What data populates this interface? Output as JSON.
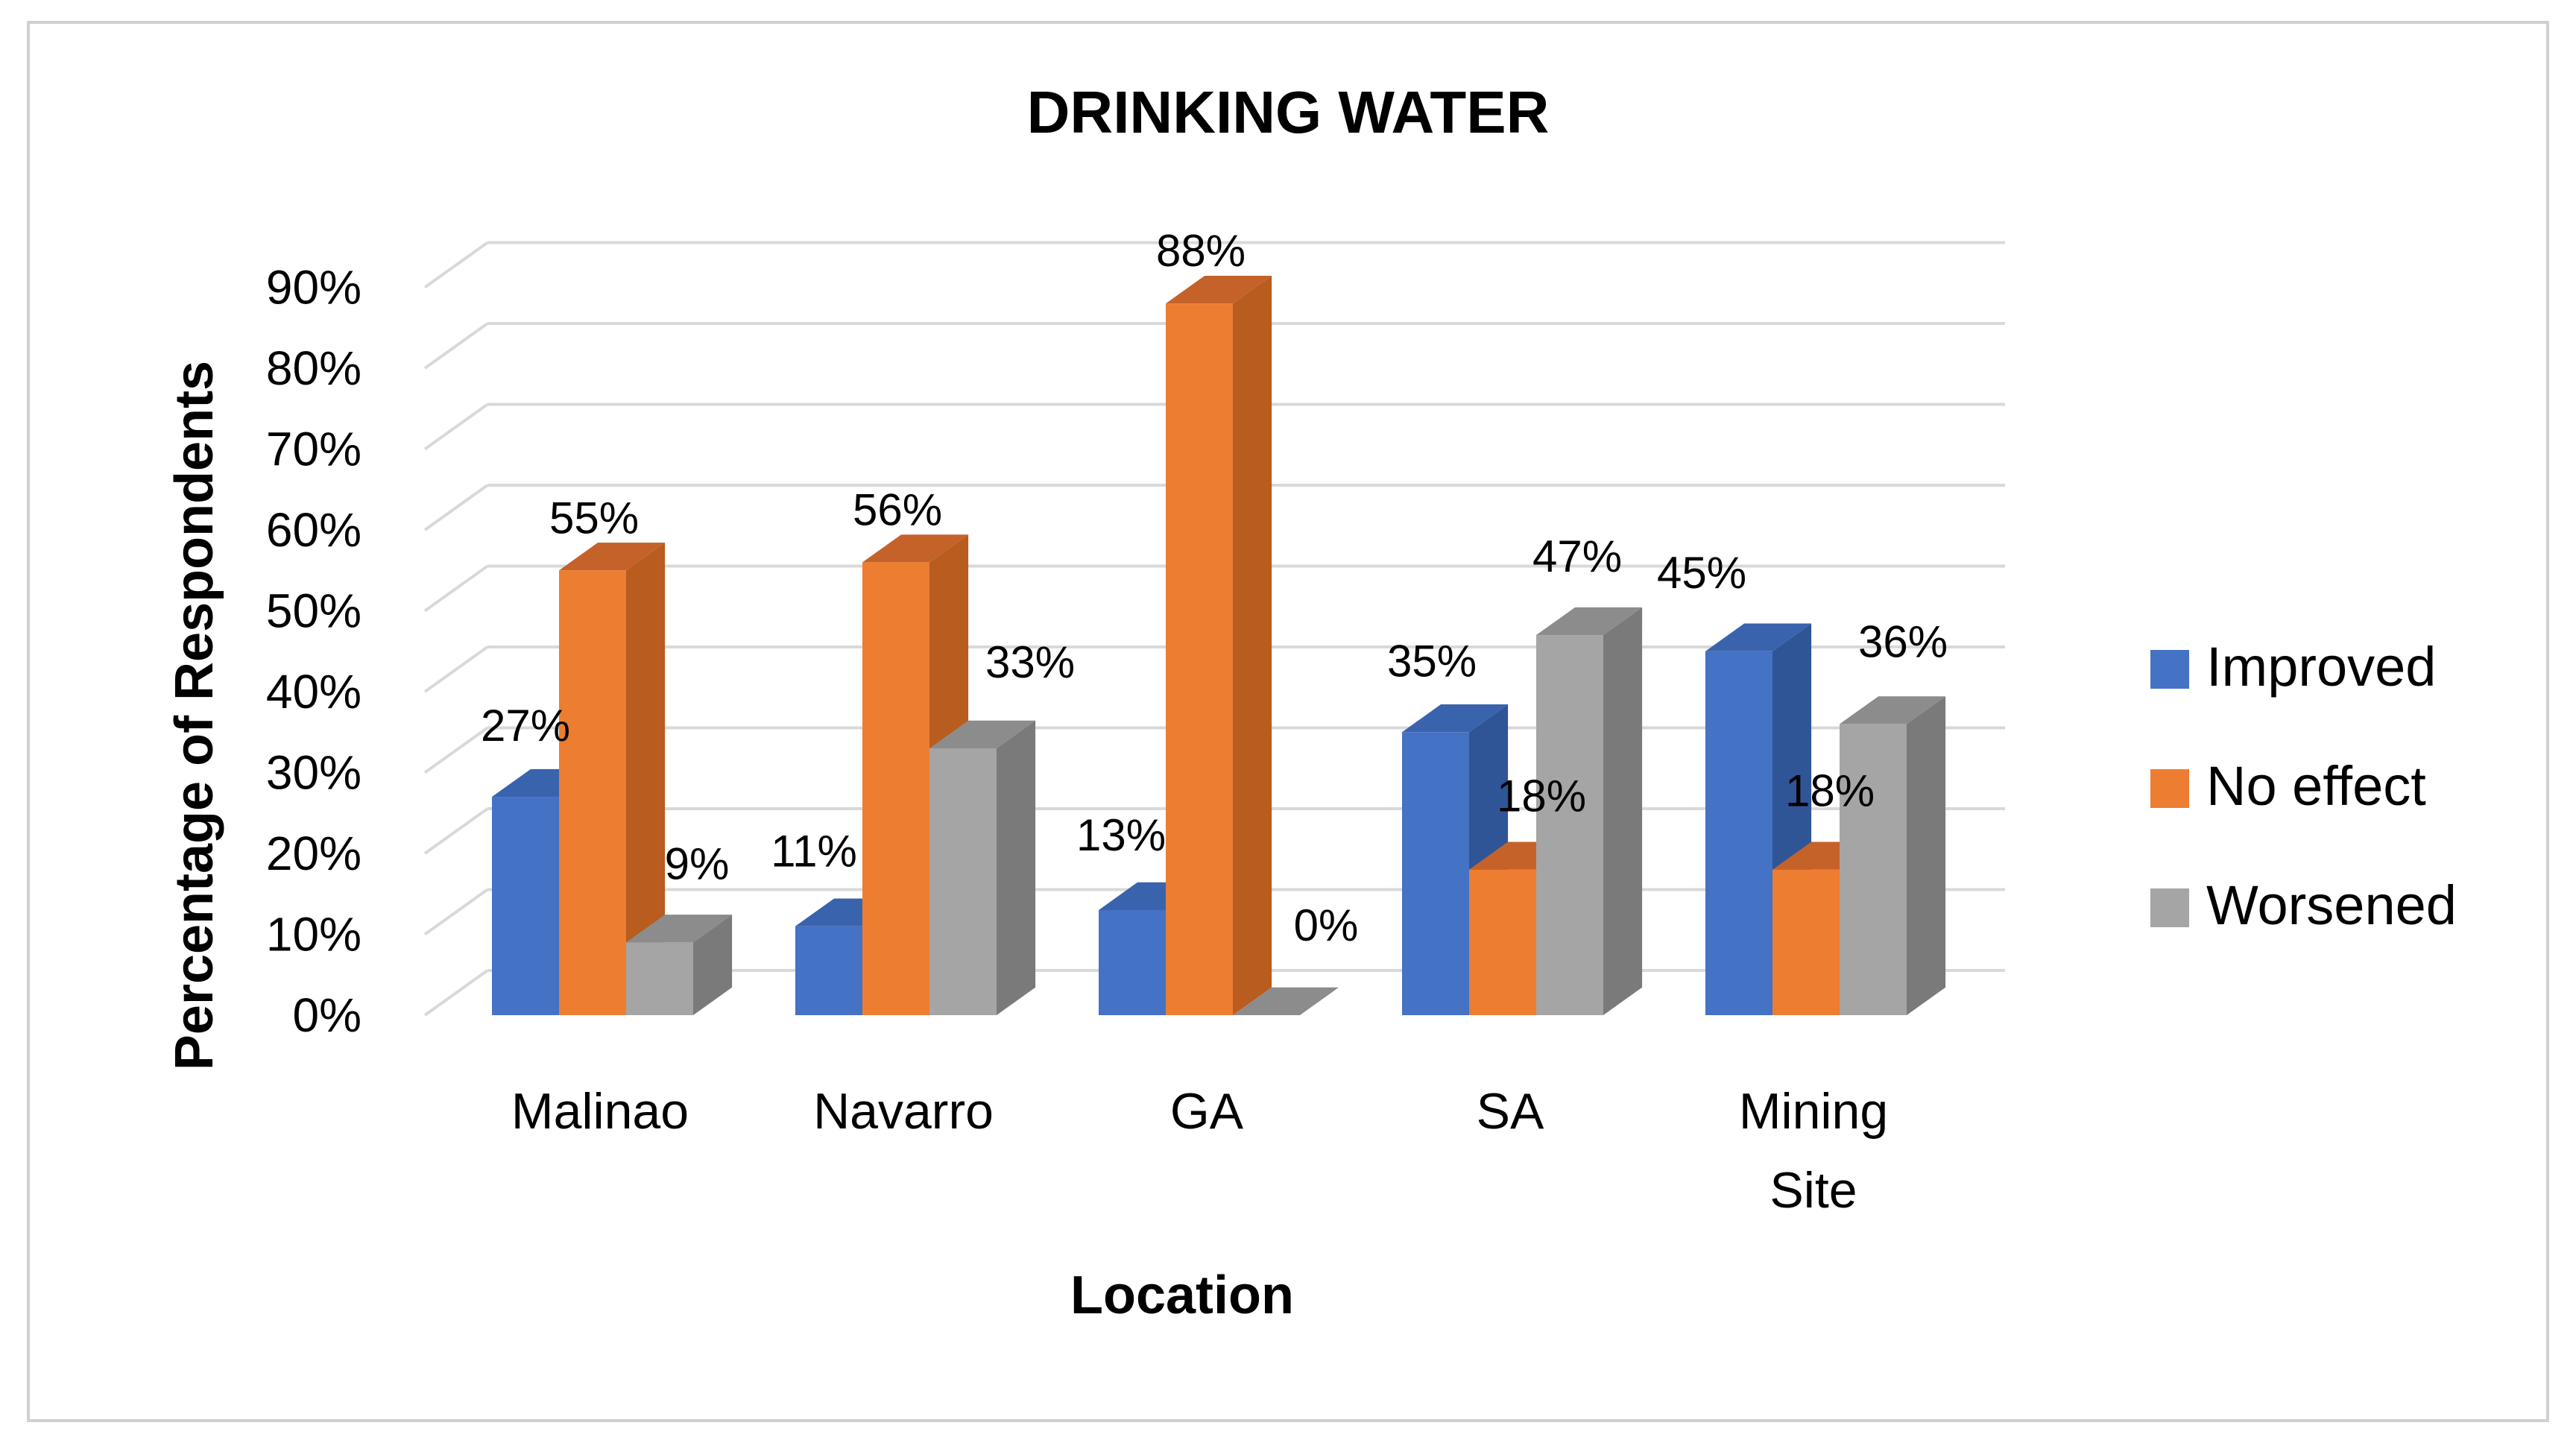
{
  "chart_data": {
    "type": "bar",
    "title": "DRINKING WATER",
    "xlabel": "Location",
    "ylabel": "Percentage of Respondents",
    "ylim": [
      0,
      90
    ],
    "ytick_step": 10,
    "yticks": [
      "0%",
      "10%",
      "20%",
      "30%",
      "40%",
      "50%",
      "60%",
      "70%",
      "80%",
      "90%"
    ],
    "categories": [
      [
        "Malinao"
      ],
      [
        "Navarro"
      ],
      [
        "GA"
      ],
      [
        "SA"
      ],
      [
        "Mining",
        "Site"
      ]
    ],
    "series": [
      {
        "name": "Improved",
        "color": "#4472C4",
        "side": "#2F5597",
        "top": "#3A63AE",
        "values": [
          27,
          11,
          13,
          35,
          45
        ],
        "labels": [
          "27%",
          "11%",
          "13%",
          "35%",
          "45%"
        ]
      },
      {
        "name": "No effect",
        "color": "#ED7D31",
        "side": "#B85C1F",
        "top": "#C5622A",
        "values": [
          55,
          56,
          88,
          18,
          18
        ],
        "labels": [
          "55%",
          "56%",
          "88%",
          "18%",
          "18%"
        ]
      },
      {
        "name": "Worsened",
        "color": "#A5A5A5",
        "side": "#7A7A7A",
        "top": "#8C8C8C",
        "values": [
          9,
          33,
          0,
          47,
          36
        ],
        "labels": [
          "9%",
          "33%",
          "0%",
          "47%",
          "36%"
        ]
      }
    ],
    "grid": true,
    "legend_position": "right"
  }
}
